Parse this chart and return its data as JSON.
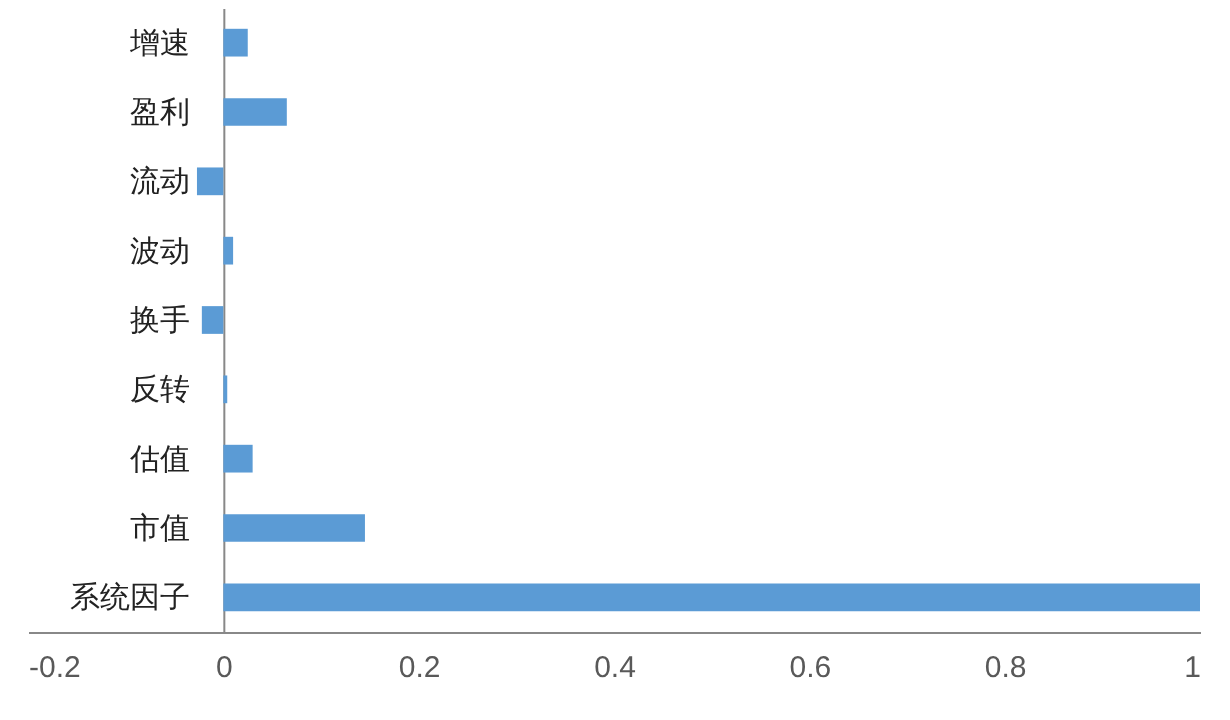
{
  "chart_data": {
    "type": "bar",
    "orientation": "horizontal",
    "categories": [
      "增速",
      "盈利",
      "流动",
      "波动",
      "换手",
      "反转",
      "估值",
      "市值",
      "系统因子"
    ],
    "values": [
      0.025,
      0.065,
      -0.027,
      0.01,
      -0.022,
      0.004,
      0.03,
      0.145,
      1.0
    ],
    "color": "#5b9bd5",
    "xlim": [
      -0.2,
      1
    ],
    "xticks": [
      -0.2,
      0,
      0.2,
      0.4,
      0.6,
      0.8,
      1
    ],
    "grid": false
  }
}
